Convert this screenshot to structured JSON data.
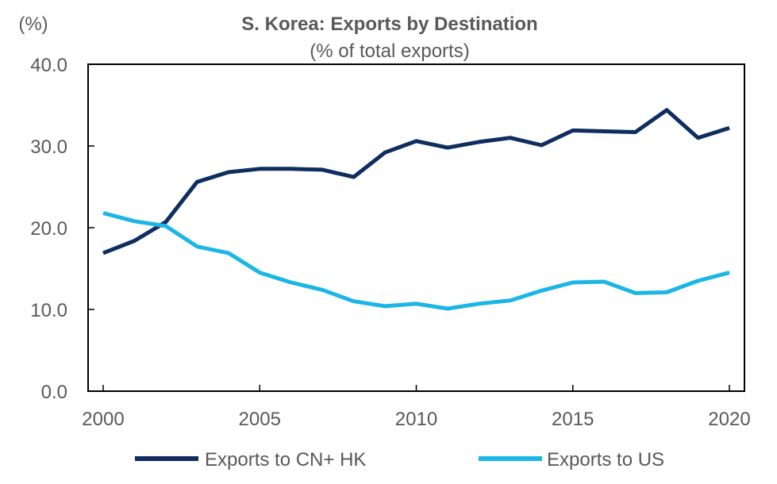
{
  "chart_data": {
    "type": "line",
    "title": "S. Korea: Exports by Destination",
    "subtitle": "(% of total exports)",
    "ylabel": "(%)",
    "xlabel": "",
    "ylim": [
      0,
      40
    ],
    "xlim": [
      2000,
      2020.5
    ],
    "yticks": [
      "0.0",
      "10.0",
      "20.0",
      "30.0",
      "40.0"
    ],
    "xticks": [
      "2000",
      "2005",
      "2010",
      "2015",
      "2020"
    ],
    "grid": false,
    "legend": "bottom",
    "x": [
      2000,
      2001,
      2002,
      2003,
      2004,
      2005,
      2006,
      2007,
      2008,
      2009,
      2010,
      2011,
      2012,
      2013,
      2014,
      2015,
      2016,
      2017,
      2018,
      2019,
      2020
    ],
    "series": [
      {
        "name": "Exports to CN+ HK",
        "color": "#0f2d5e",
        "values": [
          16.9,
          18.4,
          20.7,
          25.6,
          26.8,
          27.2,
          27.2,
          27.1,
          26.2,
          29.2,
          30.6,
          29.8,
          30.5,
          31.0,
          30.1,
          31.9,
          31.8,
          31.7,
          34.4,
          31.0,
          32.2
        ]
      },
      {
        "name": "Exports to US",
        "color": "#1bb6e5",
        "values": [
          21.8,
          20.8,
          20.2,
          17.7,
          16.9,
          14.5,
          13.3,
          12.4,
          11.0,
          10.4,
          10.7,
          10.1,
          10.7,
          11.1,
          12.3,
          13.3,
          13.4,
          12.0,
          12.1,
          13.5,
          14.5
        ]
      }
    ]
  }
}
